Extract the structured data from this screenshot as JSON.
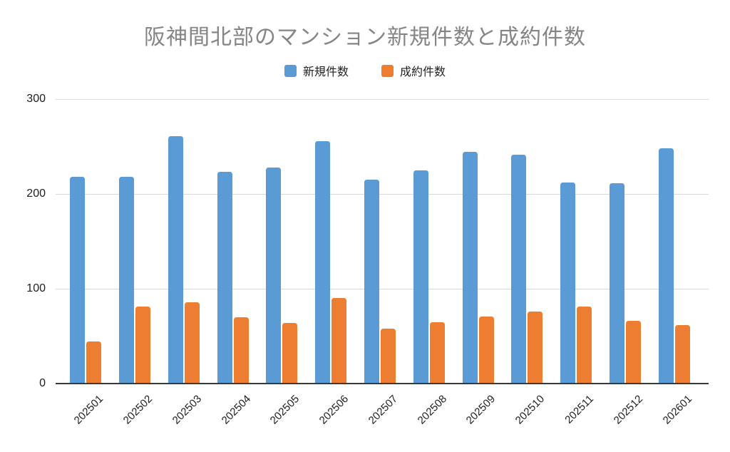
{
  "chart_data": {
    "type": "bar",
    "title": "阪神間北部のマンション新規件数と成約件数",
    "categories": [
      "202501",
      "202502",
      "202503",
      "202504",
      "202505",
      "202506",
      "202507",
      "202508",
      "202509",
      "202510",
      "202511",
      "202512",
      "202601"
    ],
    "series": [
      {
        "name": "新規件数",
        "color": "#5B9BD5",
        "values": [
          218,
          218,
          261,
          223,
          228,
          256,
          215,
          225,
          244,
          241,
          212,
          211,
          248
        ]
      },
      {
        "name": "成約件数",
        "color": "#ED7D31",
        "values": [
          44,
          81,
          86,
          70,
          64,
          90,
          58,
          65,
          71,
          76,
          81,
          66,
          62
        ]
      }
    ],
    "xlabel": "",
    "ylabel": "",
    "ylim": [
      0,
      300
    ],
    "yticks": [
      0,
      100,
      200,
      300
    ],
    "grid": true,
    "legend_position": "top",
    "x_tick_rotation": -45
  }
}
